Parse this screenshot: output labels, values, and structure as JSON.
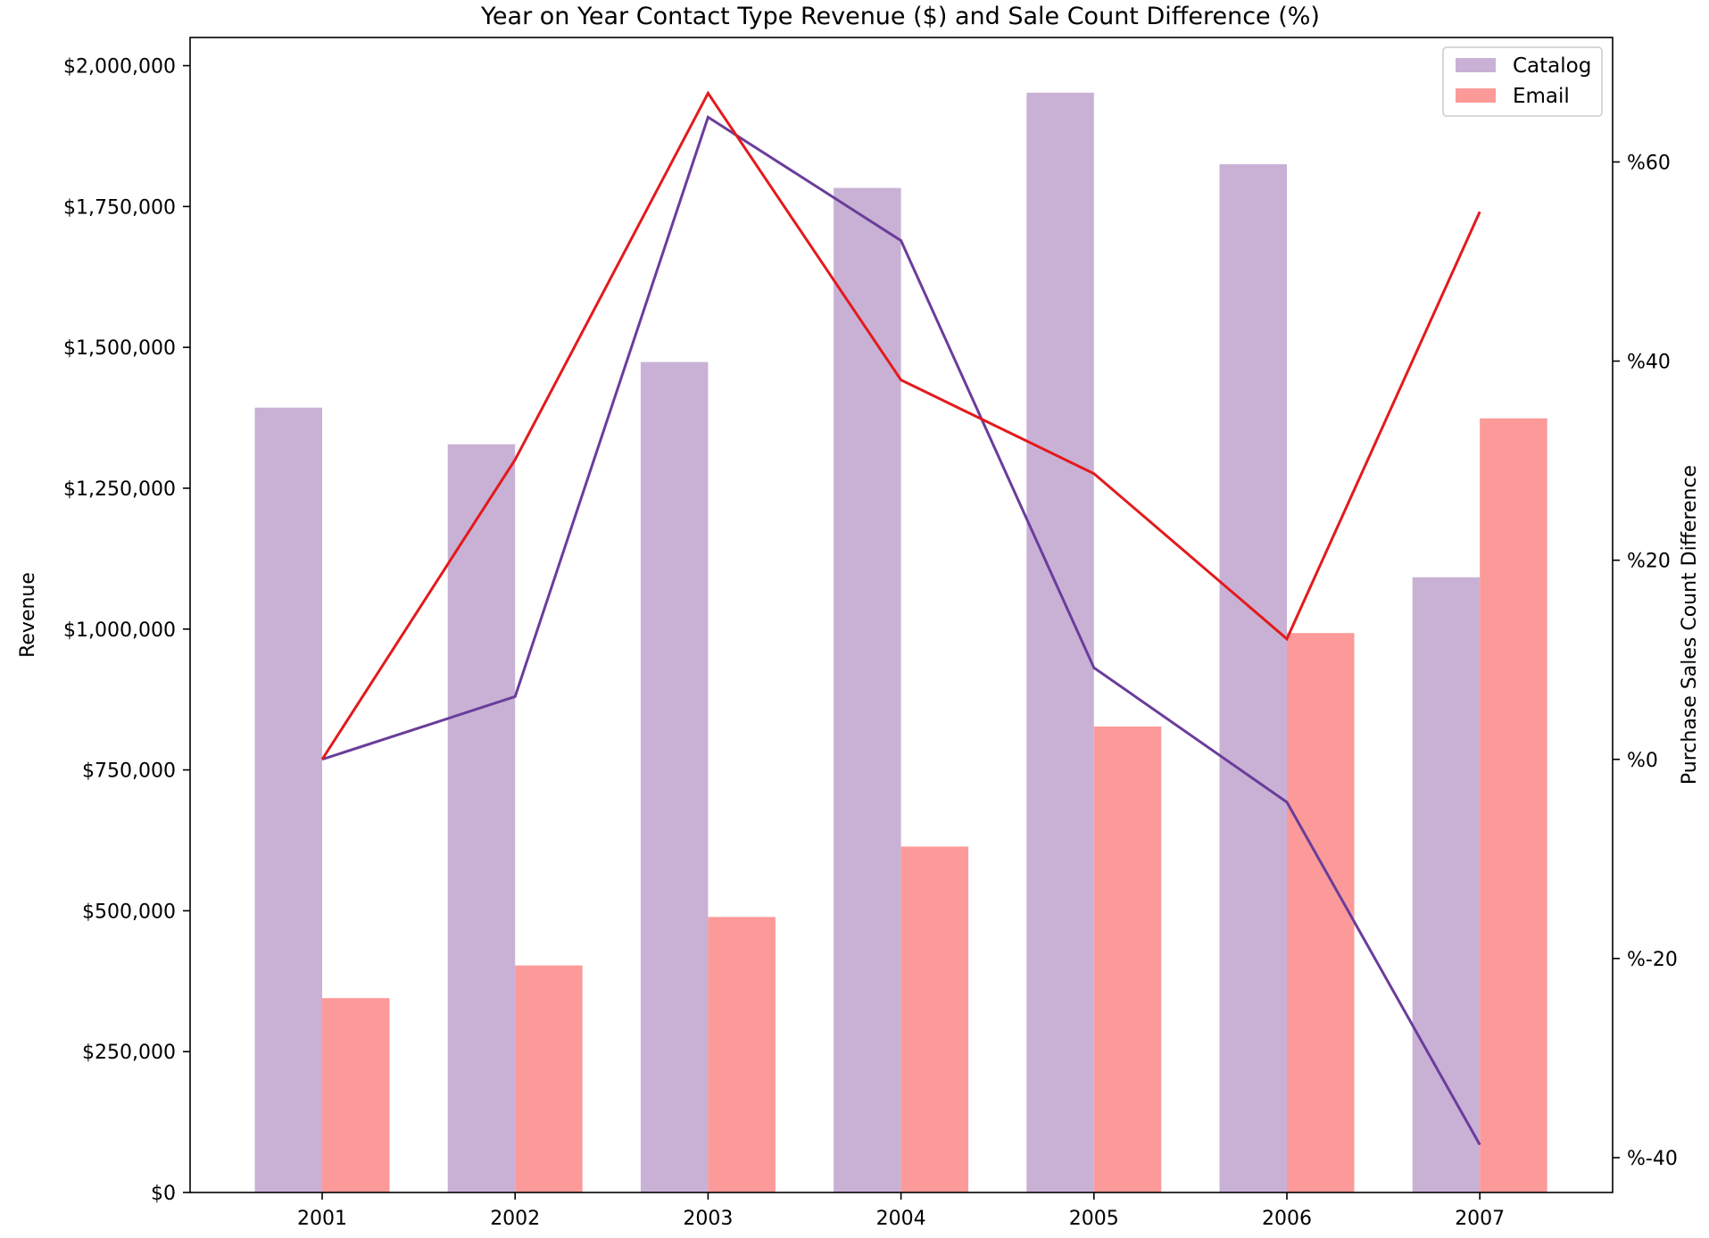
{
  "chart_data": {
    "type": "bar",
    "title": "Year on Year Contact Type Revenue ($) and Sale Count Difference (%)",
    "xlabel": "",
    "ylabel": "Revenue",
    "y2label": "Purchase Sales Count Difference",
    "categories": [
      "2001",
      "2002",
      "2003",
      "2004",
      "2005",
      "2006",
      "2007"
    ],
    "ylim": [
      0,
      2050000
    ],
    "y2lim": [
      -43.5,
      72.5
    ],
    "yticks": [
      0,
      250000,
      500000,
      750000,
      1000000,
      1250000,
      1500000,
      1750000,
      2000000
    ],
    "ytick_labels": [
      "$0",
      "$250,000",
      "$500,000",
      "$750,000",
      "$1,000,000",
      "$1,250,000",
      "$1,500,000",
      "$1,750,000",
      "$2,000,000"
    ],
    "y2ticks": [
      -40,
      -20,
      0,
      20,
      40,
      60
    ],
    "y2tick_labels": [
      "%-40",
      "%-20",
      "%0",
      "%20",
      "%40",
      "%60"
    ],
    "legend_position": "top-right",
    "grid": false,
    "series": [
      {
        "name": "Catalog",
        "kind": "bar",
        "axis": "left",
        "color": "#c9b1d6",
        "values": [
          1393000,
          1328000,
          1474000,
          1783000,
          1952000,
          1825000,
          1092000
        ]
      },
      {
        "name": "Email",
        "kind": "bar",
        "axis": "left",
        "color": "#fc9a99",
        "values": [
          345000,
          403000,
          489000,
          614000,
          827000,
          993000,
          1374000
        ]
      }
    ],
    "lines": [
      {
        "ref": "Catalog",
        "kind": "line",
        "axis": "right",
        "color": "#6a3d9a",
        "values": [
          0,
          6.3,
          64.5,
          52.1,
          9.2,
          -4.3,
          -38.7
        ]
      },
      {
        "ref": "Email",
        "kind": "line",
        "axis": "right",
        "color": "#e31a1c",
        "values": [
          0,
          30.1,
          66.9,
          38.1,
          28.7,
          12.1,
          55.0
        ]
      }
    ]
  }
}
